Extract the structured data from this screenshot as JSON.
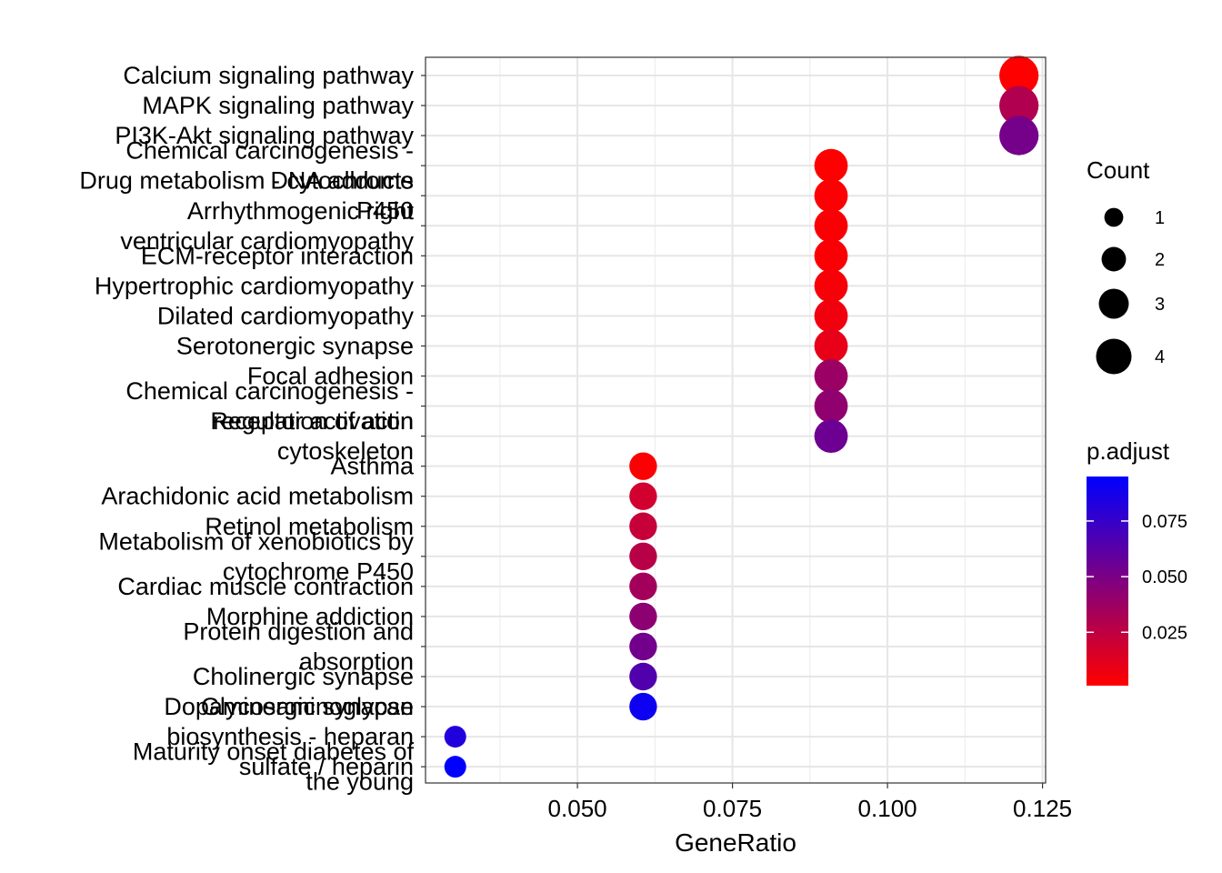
{
  "chart_data": {
    "type": "scatter",
    "title": "",
    "xlabel": "GeneRatio",
    "ylabel": "",
    "xlim": [
      0.0255,
      0.1255
    ],
    "x_ticks": [
      {
        "value": 0.05,
        "label": "0.050"
      },
      {
        "value": 0.075,
        "label": "0.075"
      },
      {
        "value": 0.1,
        "label": "0.100"
      },
      {
        "value": 0.125,
        "label": "0.125"
      }
    ],
    "grid": true,
    "legend_placement": "right",
    "points": [
      {
        "term": [
          "Calcium signaling pathway"
        ],
        "x": 0.1212,
        "count": 4,
        "p_adjust": 0.001
      },
      {
        "term": [
          "MAPK signaling pathway"
        ],
        "x": 0.1212,
        "count": 4,
        "p_adjust": 0.03
      },
      {
        "term": [
          "PI3K-Akt signaling pathway"
        ],
        "x": 0.1212,
        "count": 4,
        "p_adjust": 0.052
      },
      {
        "term": [
          "Chemical carcinogenesis -",
          "DNA adducts"
        ],
        "x": 0.0909,
        "count": 3,
        "p_adjust": 0.001
      },
      {
        "term": [
          "Drug metabolism - cytochrome",
          "P450"
        ],
        "x": 0.0909,
        "count": 3,
        "p_adjust": 0.002
      },
      {
        "term": [
          "Arrhythmogenic right",
          "ventricular cardiomyopathy"
        ],
        "x": 0.0909,
        "count": 3,
        "p_adjust": 0.003
      },
      {
        "term": [
          "ECM-receptor interaction"
        ],
        "x": 0.0909,
        "count": 3,
        "p_adjust": 0.003
      },
      {
        "term": [
          "Hypertrophic cardiomyopathy"
        ],
        "x": 0.0909,
        "count": 3,
        "p_adjust": 0.004
      },
      {
        "term": [
          "Dilated cardiomyopathy"
        ],
        "x": 0.0909,
        "count": 3,
        "p_adjust": 0.006
      },
      {
        "term": [
          "Serotonergic synapse"
        ],
        "x": 0.0909,
        "count": 3,
        "p_adjust": 0.01
      },
      {
        "term": [
          "Focal adhesion"
        ],
        "x": 0.0909,
        "count": 3,
        "p_adjust": 0.038
      },
      {
        "term": [
          "Chemical carcinogenesis -",
          "receptor activation"
        ],
        "x": 0.0909,
        "count": 3,
        "p_adjust": 0.042
      },
      {
        "term": [
          "Regulation of actin",
          "cytoskeleton"
        ],
        "x": 0.0909,
        "count": 3,
        "p_adjust": 0.055
      },
      {
        "term": [
          "Asthma"
        ],
        "x": 0.0606,
        "count": 2,
        "p_adjust": 0.002
      },
      {
        "term": [
          "Arachidonic acid metabolism"
        ],
        "x": 0.0606,
        "count": 2,
        "p_adjust": 0.018
      },
      {
        "term": [
          "Retinol metabolism"
        ],
        "x": 0.0606,
        "count": 2,
        "p_adjust": 0.022
      },
      {
        "term": [
          "Metabolism of xenobiotics by",
          "cytochrome P450"
        ],
        "x": 0.0606,
        "count": 2,
        "p_adjust": 0.027
      },
      {
        "term": [
          "Cardiac muscle contraction"
        ],
        "x": 0.0606,
        "count": 2,
        "p_adjust": 0.035
      },
      {
        "term": [
          "Morphine addiction"
        ],
        "x": 0.0606,
        "count": 2,
        "p_adjust": 0.043
      },
      {
        "term": [
          "Protein digestion and",
          "absorption"
        ],
        "x": 0.0606,
        "count": 2,
        "p_adjust": 0.053
      },
      {
        "term": [
          "Cholinergic synapse"
        ],
        "x": 0.0606,
        "count": 2,
        "p_adjust": 0.065
      },
      {
        "term": [
          "Dopaminergic synapse"
        ],
        "x": 0.0606,
        "count": 2,
        "p_adjust": 0.09
      },
      {
        "term": [
          "Glycosaminoglycan",
          "biosynthesis - heparan",
          "sulfate / heparin"
        ],
        "x": 0.0303,
        "count": 1,
        "p_adjust": 0.083
      },
      {
        "term": [
          "Maturity onset diabetes of",
          "the young"
        ],
        "x": 0.0303,
        "count": 1,
        "p_adjust": 0.095
      }
    ],
    "size_legend": {
      "title": "Count",
      "entries": [
        {
          "value": 1,
          "label": "1"
        },
        {
          "value": 2,
          "label": "2"
        },
        {
          "value": 3,
          "label": "3"
        },
        {
          "value": 4,
          "label": "4"
        }
      ]
    },
    "color_legend": {
      "title": "p.adjust",
      "low_color": "#FF0000",
      "high_color": "#0000FF",
      "range": [
        0.001,
        0.095
      ],
      "ticks": [
        {
          "value": 0.025,
          "label": "0.025"
        },
        {
          "value": 0.05,
          "label": "0.050"
        },
        {
          "value": 0.075,
          "label": "0.075"
        }
      ]
    }
  }
}
